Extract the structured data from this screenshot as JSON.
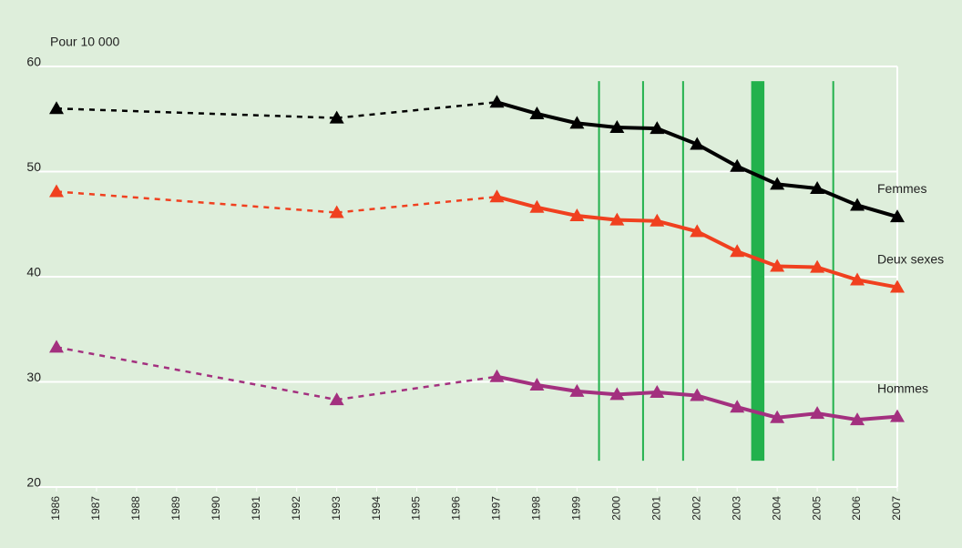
{
  "chart_data": {
    "type": "line",
    "y_label": "Pour 10 000",
    "x": [
      1986,
      1993,
      1997,
      1998,
      1999,
      2000,
      2001,
      2002,
      2003,
      2004,
      2005,
      2006,
      2007
    ],
    "series": [
      {
        "name": "Femmes",
        "color": "#000000",
        "values": [
          56,
          55.1,
          56.6,
          55.5,
          54.6,
          54.2,
          54.1,
          52.6,
          50.5,
          48.8,
          48.4,
          46.8,
          45.7
        ]
      },
      {
        "name": "Deux sexes",
        "color": "#f0401f",
        "values": [
          48.1,
          46.1,
          47.6,
          46.6,
          45.8,
          45.4,
          45.3,
          44.3,
          42.4,
          41.0,
          40.9,
          39.7,
          39.0
        ]
      },
      {
        "name": "Hommes",
        "color": "#a3307f",
        "values": [
          33.3,
          28.3,
          30.5,
          29.7,
          29.1,
          28.8,
          29.0,
          28.7,
          27.6,
          26.6,
          27.0,
          26.4,
          26.7
        ]
      }
    ],
    "xlim": [
      1986,
      2007
    ],
    "xticks": [
      1986,
      1987,
      1988,
      1989,
      1990,
      1991,
      1992,
      1993,
      1994,
      1995,
      1996,
      1997,
      1998,
      1999,
      2000,
      2001,
      2002,
      2003,
      2004,
      2005,
      2006,
      2007
    ],
    "ylim": [
      20,
      60
    ],
    "yticks": [
      20,
      30,
      40,
      50,
      60
    ],
    "grid": true,
    "markers": {
      "color": "#22b14c",
      "span": [
        22.5,
        58.6
      ],
      "items": [
        {
          "x": 1999.55
        },
        {
          "x": 2000.65
        },
        {
          "x": 2001.65
        },
        {
          "x0": 2003.35,
          "x1": 2003.68
        },
        {
          "x": 2005.4
        }
      ]
    }
  }
}
